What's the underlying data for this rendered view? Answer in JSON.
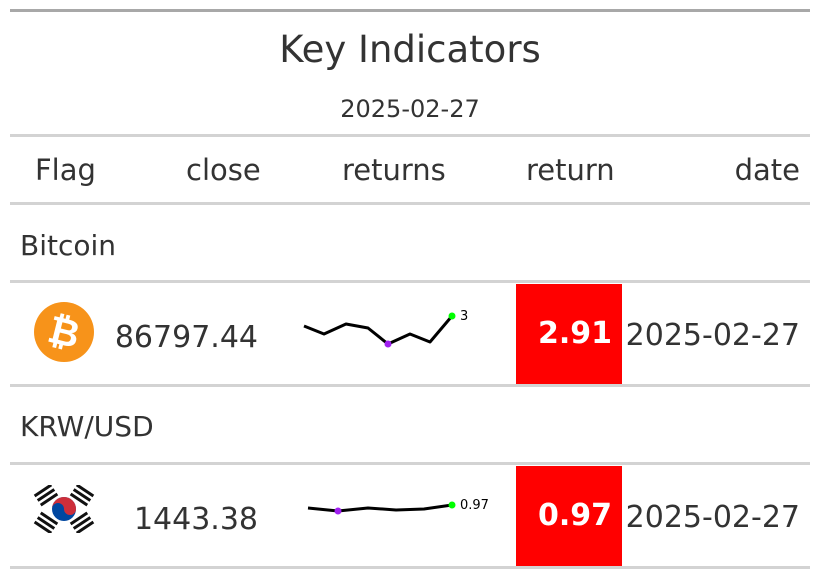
{
  "title": "Key Indicators",
  "subtitle": "2025-02-27",
  "columns": {
    "flag": "Flag",
    "close": "close",
    "returns": "returns",
    "return": "return",
    "date": "date"
  },
  "rows": [
    {
      "group": "Bitcoin",
      "flag_icon": "bitcoin-logo-icon",
      "close": "86797.44",
      "spark_end_label": "3",
      "return": "2.91",
      "return_color": "#ff0000",
      "date": "2025-02-27"
    },
    {
      "group": "KRW/USD",
      "flag_icon": "south-korea-flag-icon",
      "close": "1443.38",
      "spark_end_label": "0.97",
      "return": "0.97",
      "return_color": "#ff0000",
      "date": "2025-02-27"
    }
  ],
  "colors": {
    "return_negative": "#ff0000",
    "spark_line": "#000000",
    "spark_min": "#a020f0",
    "spark_end": "#00ff00",
    "bitcoin_orange": "#f7931a"
  }
}
